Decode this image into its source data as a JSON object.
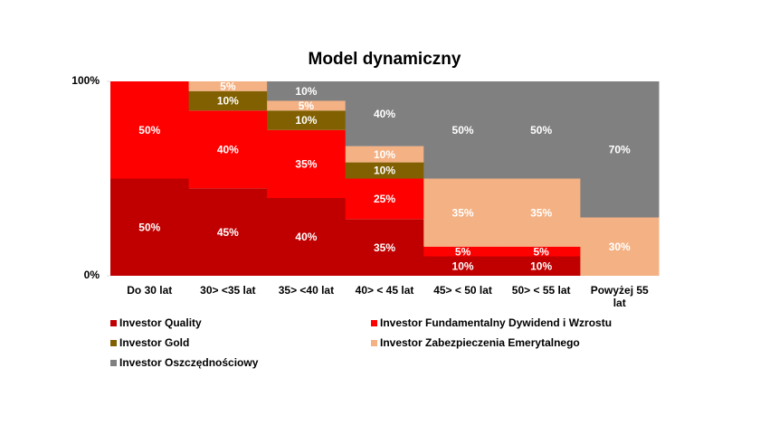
{
  "chart_data": {
    "type": "bar",
    "stacking": "percent",
    "title": "Model dynamiczny",
    "categories": [
      "Do 30 lat",
      "30> <35 lat",
      "35>  <40 lat",
      "40>  < 45 lat",
      "45>  < 50 lat",
      "50>  < 55 lat",
      "Powyżej 55 lat"
    ],
    "series": [
      {
        "name": "Investor Quality",
        "color": "#c00000",
        "values": [
          50,
          45,
          40,
          35,
          10,
          10,
          0
        ],
        "value_labels": [
          "50%",
          "45%",
          "40%",
          "35%",
          "10%",
          "10%",
          null
        ]
      },
      {
        "name": "Investor Fundamentalny Dywidend i Wzrostu",
        "color": "#ff0000",
        "values": [
          50,
          40,
          35,
          25,
          5,
          5,
          0
        ],
        "value_labels": [
          "50%",
          "40%",
          "35%",
          "25%",
          "5%",
          "5%",
          null
        ]
      },
      {
        "name": "Investor Gold",
        "color": "#806000",
        "values": [
          0,
          10,
          10,
          10,
          0,
          0,
          0
        ],
        "value_labels": [
          null,
          "10%",
          "10%",
          "10%",
          null,
          null,
          null
        ]
      },
      {
        "name": "Investor Zabezpieczenia Emerytalnego",
        "color": "#f4b183",
        "values": [
          0,
          5,
          5,
          10,
          35,
          35,
          30
        ],
        "value_labels": [
          null,
          "5%",
          "5%",
          "10%",
          "35%",
          "35%",
          "30%"
        ]
      },
      {
        "name": "Investor Oszczędnościowy",
        "color": "#808080",
        "values": [
          0,
          0,
          10,
          40,
          50,
          50,
          70
        ],
        "value_labels": [
          null,
          null,
          "10%",
          "40%",
          "50%",
          "50%",
          "70%"
        ]
      }
    ],
    "ylim": [
      0,
      100
    ],
    "yticks": [
      {
        "value": 0,
        "label": "0%"
      },
      {
        "value": 100,
        "label": "100%"
      }
    ],
    "legend": "bottom"
  }
}
